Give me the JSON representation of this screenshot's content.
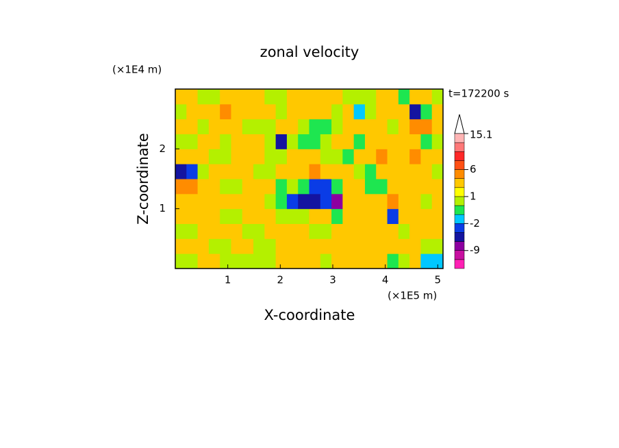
{
  "chart_data": {
    "type": "contour",
    "title": "zonal velocity",
    "xlabel": "X-coordinate",
    "ylabel": "Z-coordinate",
    "xunit": "(×1E5 m)",
    "yunit": "(×1E4 m)",
    "annotation": "t=172200 s",
    "xlim": [
      0,
      5.1
    ],
    "ylim": [
      0,
      3
    ],
    "xticks": [
      1,
      2,
      3,
      4,
      5
    ],
    "yticks": [
      1,
      2
    ],
    "x": [
      0.10625,
      0.31875,
      0.53125,
      0.74375,
      0.95625,
      1.16875,
      1.38125,
      1.59375,
      1.80625,
      2.01875,
      2.23125,
      2.44375,
      2.65625,
      2.86875,
      3.08125,
      3.29375,
      3.50625,
      3.71875,
      3.93125,
      4.14375,
      4.35625,
      4.56875,
      4.78125,
      4.99375
    ],
    "z": [
      0.125,
      0.375,
      0.625,
      0.875,
      1.125,
      1.375,
      1.625,
      1.875,
      2.125,
      2.375,
      2.625,
      2.875
    ],
    "values": [
      [
        0.5,
        0.5,
        2,
        2,
        0.5,
        0.5,
        0.5,
        0.5,
        0.5,
        2,
        2,
        2,
        2,
        0.5,
        2,
        2,
        2,
        2,
        2,
        -1,
        0.5,
        2,
        -1.5,
        -1.5
      ],
      [
        2,
        2,
        2,
        0.5,
        0.5,
        2,
        2,
        0.5,
        0.5,
        2,
        2,
        2,
        2,
        2,
        2,
        2,
        2,
        3,
        2,
        2,
        2,
        2,
        0.5,
        0.5
      ],
      [
        0.5,
        0.5,
        2,
        2,
        2,
        2,
        0.5,
        0.5,
        2,
        2,
        2,
        2,
        0.5,
        0.5,
        2,
        2,
        2,
        2,
        2,
        2,
        0.5,
        3,
        2,
        2
      ],
      [
        2,
        2,
        2,
        2,
        0.5,
        0.5,
        2,
        2,
        2,
        0.5,
        0.5,
        0.5,
        2,
        2,
        -1,
        2,
        2,
        2,
        2,
        -3,
        2,
        2,
        2,
        2
      ],
      [
        2,
        3,
        2,
        2,
        2,
        2,
        2,
        2,
        0.5,
        -1,
        -3,
        -5,
        -6,
        -3,
        -7,
        2,
        2,
        2,
        2,
        5,
        2,
        2,
        0.5,
        2
      ],
      [
        5,
        5,
        2,
        2,
        0.5,
        0.5,
        2,
        2,
        2,
        -1,
        0.5,
        -1,
        -3,
        -3,
        -1,
        2,
        2,
        -1,
        -1,
        2,
        2,
        2,
        2,
        2
      ],
      [
        -5,
        -3,
        0.5,
        2,
        2,
        2,
        2,
        0.5,
        0.5,
        2,
        2,
        3,
        4,
        3,
        2,
        2,
        0.5,
        -1,
        2,
        2,
        2,
        2,
        2,
        0.5
      ],
      [
        2,
        2,
        2,
        0.5,
        0.5,
        2,
        2,
        2,
        0.5,
        0.5,
        2,
        2,
        2,
        0.5,
        0.5,
        -1,
        2,
        2,
        4,
        2,
        2,
        4,
        3,
        2
      ],
      [
        0.5,
        0.5,
        2,
        2,
        0.5,
        2,
        2,
        2,
        0.5,
        -5,
        0.5,
        -1,
        -1,
        0.5,
        2,
        2,
        -1,
        2,
        2,
        2,
        2,
        2,
        -1,
        0.5
      ],
      [
        2,
        2,
        0.5,
        2,
        2,
        2,
        0.5,
        0.5,
        0.5,
        2,
        2,
        0.5,
        -1,
        -1,
        0.5,
        2,
        2,
        3,
        2,
        0.5,
        2,
        4,
        4,
        2
      ],
      [
        0.5,
        2,
        2,
        2,
        4,
        3,
        2,
        2,
        2,
        0.5,
        2,
        3,
        3,
        2,
        0.5,
        2,
        -2,
        0.5,
        2,
        2,
        2,
        -6,
        -1,
        2
      ],
      [
        2,
        2,
        0.5,
        0.5,
        2,
        2,
        2,
        2,
        0.5,
        0.5,
        2,
        2,
        2,
        2,
        2,
        0.5,
        0.5,
        0.5,
        2,
        2,
        -1,
        2,
        2,
        0.5
      ]
    ],
    "colorbar": {
      "levels": [
        -15,
        -12,
        -9,
        -6,
        -4,
        -2,
        -1,
        0,
        1,
        2,
        4,
        6,
        8,
        10,
        12.5,
        15.1
      ],
      "colors": [
        "#ff20b4",
        "#c810a0",
        "#8c00a0",
        "#1414a0",
        "#0a3ce6",
        "#00c8ff",
        "#1ee650",
        "#b4f000",
        "#ffff00",
        "#ffc800",
        "#ff8c00",
        "#ff5014",
        "#ff2828",
        "#ff7878",
        "#ffb4b4"
      ],
      "ticks": [
        15.1,
        6,
        1,
        -2,
        -9
      ]
    }
  }
}
